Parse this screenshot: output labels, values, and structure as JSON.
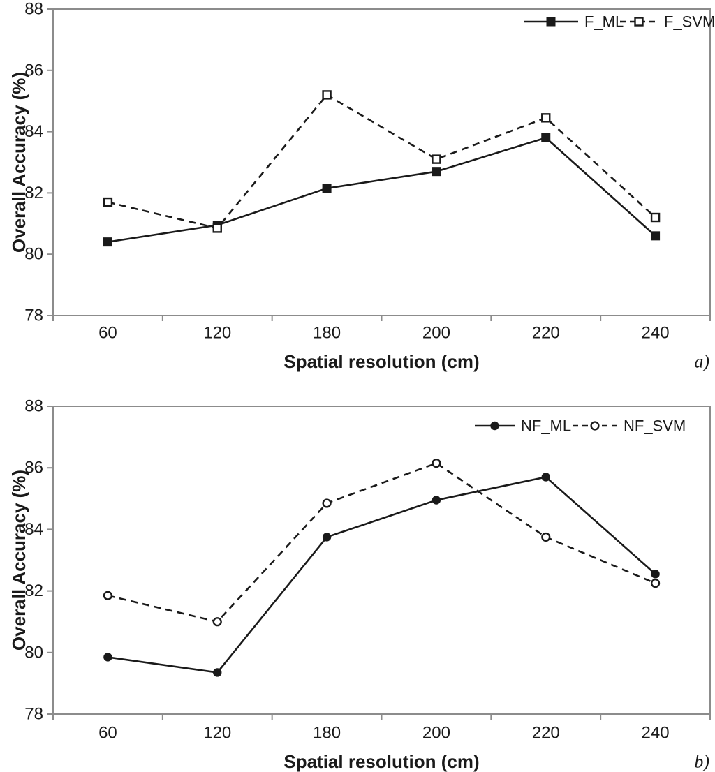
{
  "page": {
    "background": "#ffffff"
  },
  "colors": {
    "series": "#1a1a1a",
    "axis_box": "#8c8c8c",
    "text": "#1a1a1a",
    "open_marker_fill": "#ffffff"
  },
  "chart_data": [
    {
      "id": "a",
      "type": "line",
      "panel_label": "a)",
      "xlabel": "Spatial resolution (cm)",
      "ylabel": "Overall Accuracy (%)",
      "categories": [
        "60",
        "120",
        "180",
        "200",
        "220",
        "240"
      ],
      "ylim": [
        78,
        88
      ],
      "yticks": [
        "78",
        "80",
        "82",
        "84",
        "86",
        "88"
      ],
      "grid": false,
      "legend_position": "top-right-inside",
      "series": [
        {
          "name": "F_ML",
          "line_style": "solid",
          "marker": "filled-square",
          "values": [
            80.4,
            80.95,
            82.15,
            82.7,
            83.8,
            80.6
          ]
        },
        {
          "name": "F_SVM",
          "line_style": "dashed",
          "marker": "open-square",
          "values": [
            81.7,
            80.85,
            85.2,
            83.1,
            84.45,
            81.2
          ]
        }
      ]
    },
    {
      "id": "b",
      "type": "line",
      "panel_label": "b)",
      "xlabel": "Spatial resolution (cm)",
      "ylabel": "Overall Accuracy (%)",
      "categories": [
        "60",
        "120",
        "180",
        "200",
        "220",
        "240"
      ],
      "ylim": [
        78,
        88
      ],
      "yticks": [
        "78",
        "80",
        "82",
        "84",
        "86",
        "88"
      ],
      "grid": false,
      "legend_position": "top-right-inside",
      "series": [
        {
          "name": "NF_ML",
          "line_style": "solid",
          "marker": "filled-circle",
          "values": [
            79.85,
            79.35,
            83.75,
            84.95,
            85.7,
            82.55
          ]
        },
        {
          "name": "NF_SVM",
          "line_style": "dashed",
          "marker": "open-circle",
          "values": [
            81.85,
            81.0,
            84.85,
            86.15,
            83.75,
            82.25
          ]
        }
      ]
    }
  ]
}
